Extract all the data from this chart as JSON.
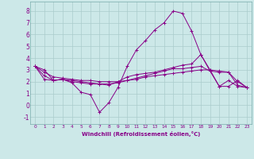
{
  "xlabel": "Windchill (Refroidissement éolien,°C)",
  "bg_color": "#cce8e8",
  "grid_color": "#aacccc",
  "line_color": "#880088",
  "xlim": [
    -0.5,
    23.5
  ],
  "ylim": [
    -1.6,
    8.8
  ],
  "xticks": [
    0,
    1,
    2,
    3,
    4,
    5,
    6,
    7,
    8,
    9,
    10,
    11,
    12,
    13,
    14,
    15,
    16,
    17,
    18,
    19,
    20,
    21,
    22,
    23
  ],
  "yticks": [
    -1,
    0,
    1,
    2,
    3,
    4,
    5,
    6,
    7,
    8
  ],
  "series": [
    [
      3.3,
      3.0,
      2.1,
      2.2,
      1.9,
      1.1,
      0.9,
      -0.6,
      0.2,
      1.5,
      3.3,
      4.7,
      5.5,
      6.4,
      7.0,
      8.0,
      7.8,
      6.3,
      4.3,
      3.0,
      1.6,
      2.1,
      1.6,
      1.5
    ],
    [
      3.3,
      2.2,
      2.1,
      2.2,
      2.0,
      1.9,
      1.8,
      1.8,
      1.7,
      2.0,
      2.4,
      2.6,
      2.7,
      2.8,
      3.0,
      3.2,
      3.4,
      3.5,
      4.3,
      2.9,
      1.6,
      1.6,
      2.1,
      1.5
    ],
    [
      3.3,
      2.5,
      2.1,
      2.2,
      2.1,
      2.0,
      1.9,
      1.8,
      1.8,
      1.9,
      2.1,
      2.3,
      2.5,
      2.7,
      2.9,
      3.1,
      3.1,
      3.2,
      3.3,
      2.9,
      2.8,
      2.8,
      1.7,
      1.5
    ],
    [
      3.3,
      2.8,
      2.4,
      2.3,
      2.2,
      2.1,
      2.1,
      2.0,
      2.0,
      2.0,
      2.1,
      2.2,
      2.4,
      2.5,
      2.6,
      2.7,
      2.8,
      2.9,
      3.0,
      3.0,
      2.9,
      2.8,
      2.0,
      1.5
    ]
  ]
}
